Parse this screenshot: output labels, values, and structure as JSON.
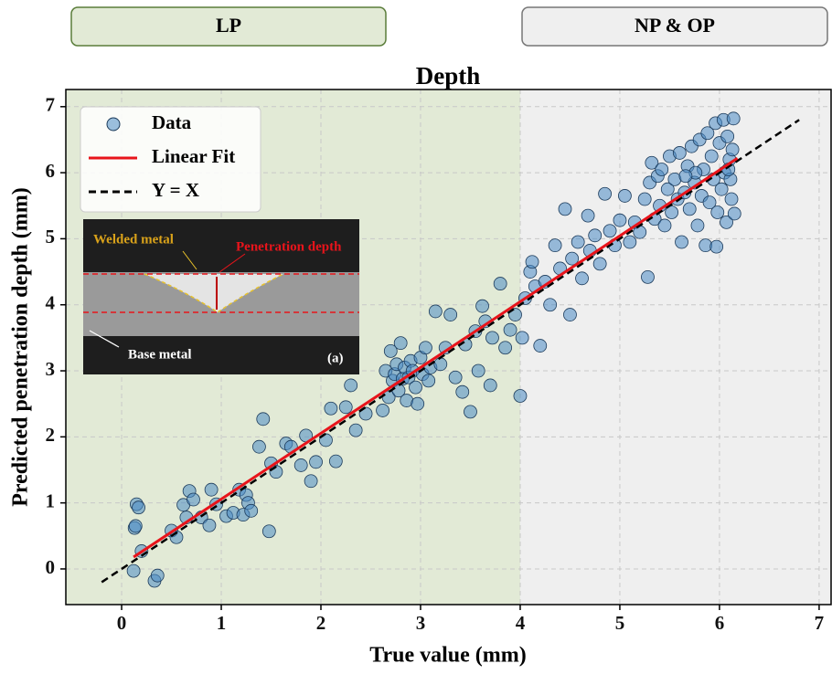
{
  "chart_data": {
    "type": "scatter",
    "title": "Depth",
    "x_label": "True value (mm)",
    "y_label": "Predicted penetration depth (mm)",
    "xlim": [
      -0.56,
      7.12
    ],
    "ylim": [
      -0.54,
      7.26
    ],
    "xticks": [
      0,
      1,
      2,
      3,
      4,
      5,
      6,
      7
    ],
    "yticks": [
      0,
      1,
      2,
      3,
      4,
      5,
      6,
      7
    ],
    "grid": true,
    "legend": "upper-left",
    "regions": [
      {
        "label": "LP",
        "until": 4,
        "color": "#e2ead6"
      },
      {
        "label": "NP & OP",
        "from": 4,
        "color": "#efefef"
      }
    ],
    "series": [
      {
        "name": "Data",
        "kind": "scatter",
        "color": "#4a8ac4",
        "x": [
          0.12,
          0.13,
          0.14,
          0.15,
          0.17,
          0.2,
          0.33,
          0.36,
          0.5,
          0.55,
          0.62,
          0.65,
          0.68,
          0.72,
          0.8,
          0.88,
          0.9,
          0.95,
          1.05,
          1.12,
          1.18,
          1.22,
          1.25,
          1.27,
          1.3,
          1.38,
          1.42,
          1.48,
          1.5,
          1.55,
          1.65,
          1.7,
          1.8,
          1.85,
          1.9,
          1.95,
          2.05,
          2.1,
          2.15,
          2.25,
          2.3,
          2.35,
          2.45,
          2.62,
          2.65,
          2.68,
          2.7,
          2.72,
          2.74,
          2.76,
          2.78,
          2.8,
          2.82,
          2.84,
          2.86,
          2.88,
          2.9,
          2.92,
          2.95,
          2.97,
          3.0,
          3.02,
          3.05,
          3.08,
          3.1,
          3.15,
          3.2,
          3.25,
          3.3,
          3.35,
          3.42,
          3.5,
          3.45,
          3.55,
          3.58,
          3.62,
          3.65,
          3.7,
          3.72,
          3.8,
          3.85,
          3.9,
          3.95,
          4.0,
          4.02,
          4.05,
          4.1,
          4.12,
          4.15,
          4.2,
          4.25,
          4.3,
          4.35,
          4.4,
          4.45,
          4.5,
          4.52,
          4.58,
          4.62,
          4.68,
          4.7,
          4.75,
          4.8,
          4.85,
          4.9,
          4.95,
          5.0,
          5.05,
          5.1,
          5.15,
          5.2,
          5.25,
          5.28,
          5.3,
          5.32,
          5.35,
          5.38,
          5.4,
          5.42,
          5.45,
          5.48,
          5.5,
          5.52,
          5.55,
          5.58,
          5.6,
          5.62,
          5.65,
          5.68,
          5.7,
          5.72,
          5.75,
          5.78,
          5.8,
          5.82,
          5.84,
          5.86,
          5.88,
          5.9,
          5.92,
          5.94,
          5.96,
          5.98,
          6.0,
          6.02,
          6.04,
          6.05,
          6.07,
          6.08,
          6.1,
          6.12,
          6.14,
          6.15,
          6.13,
          6.11,
          6.09,
          5.97,
          5.76,
          5.66
        ],
        "values": [
          -0.03,
          0.62,
          0.65,
          0.98,
          0.93,
          0.27,
          -0.18,
          -0.1,
          0.58,
          0.48,
          0.97,
          0.78,
          1.18,
          1.05,
          0.78,
          0.66,
          1.2,
          0.98,
          0.8,
          0.85,
          1.2,
          0.82,
          1.12,
          1.0,
          0.88,
          1.85,
          2.27,
          0.57,
          1.6,
          1.47,
          1.9,
          1.85,
          1.57,
          2.02,
          1.33,
          1.62,
          1.95,
          2.43,
          1.63,
          2.45,
          2.78,
          2.1,
          2.35,
          2.4,
          3.0,
          2.6,
          3.3,
          2.85,
          2.95,
          3.1,
          2.7,
          3.42,
          2.88,
          3.05,
          2.55,
          2.9,
          3.15,
          3.0,
          2.75,
          2.5,
          3.2,
          2.95,
          3.35,
          2.85,
          3.05,
          3.9,
          3.1,
          3.35,
          3.85,
          2.9,
          2.68,
          2.38,
          3.4,
          3.6,
          3.0,
          3.98,
          3.75,
          2.78,
          3.5,
          4.32,
          3.35,
          3.62,
          3.85,
          2.62,
          3.5,
          4.1,
          4.5,
          4.65,
          4.28,
          3.38,
          4.35,
          4.0,
          4.9,
          4.55,
          5.45,
          3.85,
          4.7,
          4.95,
          4.4,
          5.35,
          4.82,
          5.05,
          4.62,
          5.68,
          5.12,
          4.9,
          5.28,
          5.65,
          4.95,
          5.25,
          5.1,
          5.6,
          4.42,
          5.85,
          6.15,
          5.3,
          5.95,
          5.5,
          6.05,
          5.2,
          5.75,
          6.25,
          5.4,
          5.9,
          5.6,
          6.3,
          4.95,
          5.7,
          6.1,
          5.45,
          6.4,
          5.85,
          5.2,
          6.5,
          5.65,
          6.05,
          4.9,
          6.6,
          5.55,
          6.25,
          5.9,
          6.75,
          5.4,
          6.45,
          5.75,
          6.8,
          6.0,
          5.25,
          6.55,
          6.2,
          5.6,
          6.82,
          5.38,
          6.35,
          5.9,
          6.05,
          4.88,
          6.0,
          5.95
        ]
      },
      {
        "name": "Linear Fit",
        "kind": "line",
        "color": "#e8141b",
        "x": [
          0.12,
          6.18
        ],
        "values": [
          0.18,
          6.22
        ]
      },
      {
        "name": "Y = X",
        "kind": "line",
        "color": "#000000",
        "dash": true,
        "x": [
          -0.2,
          6.8
        ],
        "values": [
          -0.2,
          6.8
        ]
      }
    ],
    "inset": {
      "labels": [
        "Welded metal",
        "Penetration depth",
        "Base metal",
        "(a)"
      ]
    }
  }
}
